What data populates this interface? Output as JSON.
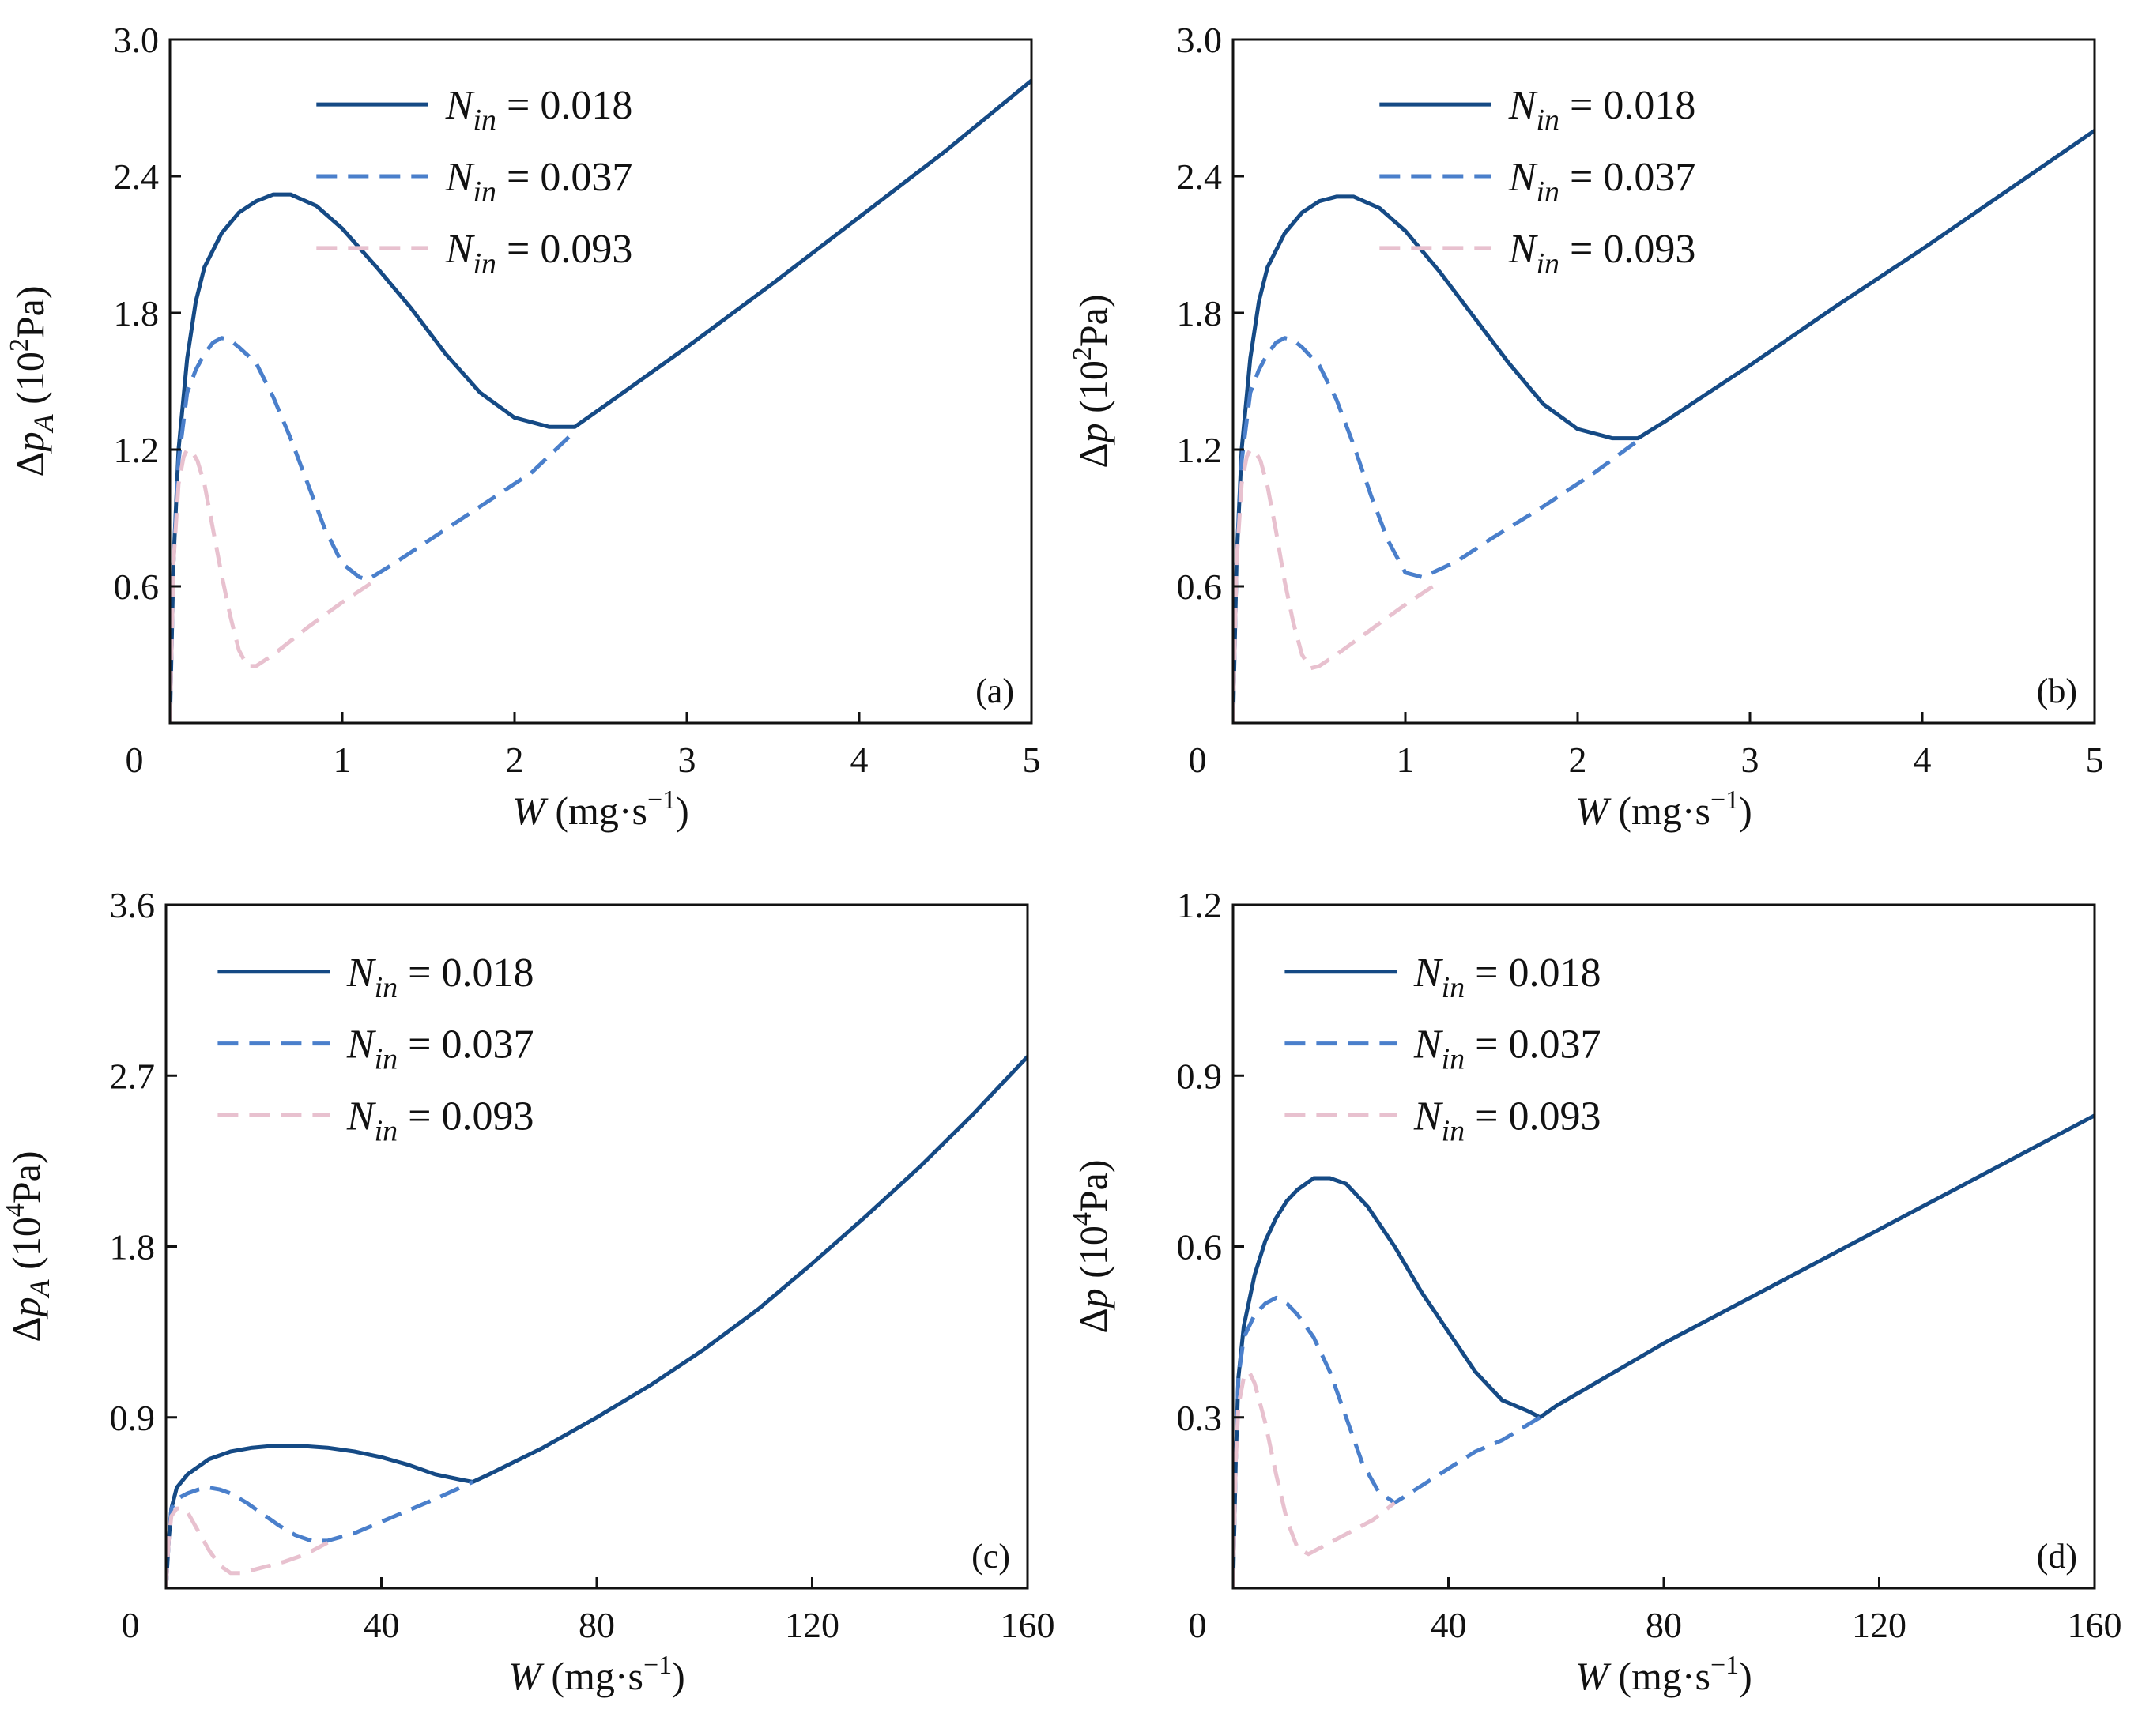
{
  "figure": {
    "legend_template": {
      "symbol": "N",
      "subscript": "in",
      "equals": "="
    },
    "units": {
      "w_unit_prefix": "(mg·s",
      "w_unit_exponent": "−1",
      "w_unit_suffix": ")",
      "pa2_prefix": "(10",
      "pa2_exponent": "2",
      "pa2_suffix": "Pa)",
      "pa4_prefix": "(10",
      "pa4_exponent": "4",
      "pa4_suffix": "Pa)"
    }
  },
  "chart_data": [
    {
      "type": "line",
      "panel_label": "(a)",
      "xlabel_symbol": "W",
      "ylabel": {
        "delta": "Δ",
        "symbol": "p",
        "subscript": "A",
        "unit": "pa2"
      },
      "xlim": [
        0,
        5
      ],
      "ylim": [
        0,
        3.0
      ],
      "xticks": [
        0,
        1,
        2,
        3,
        4,
        5
      ],
      "xtick_labels": [
        "0",
        "1",
        "2",
        "3",
        "4",
        "5"
      ],
      "yticks": [
        0.6,
        1.2,
        1.8,
        2.4,
        3.0
      ],
      "ytick_labels": [
        "0.6",
        "1.2",
        "1.8",
        "2.4",
        "3.0"
      ],
      "legend_position": "top-center",
      "series": [
        {
          "name": "0.018",
          "style": "solid",
          "color": "#154a85",
          "x": [
            0,
            0.02,
            0.05,
            0.1,
            0.15,
            0.2,
            0.3,
            0.4,
            0.5,
            0.6,
            0.7,
            0.85,
            1.0,
            1.2,
            1.4,
            1.6,
            1.8,
            2.0,
            2.2,
            2.35,
            2.5,
            3.0,
            3.5,
            4.0,
            4.5,
            5.0
          ],
          "y": [
            0,
            0.7,
            1.2,
            1.6,
            1.85,
            2.0,
            2.15,
            2.24,
            2.29,
            2.32,
            2.32,
            2.27,
            2.17,
            2.0,
            1.82,
            1.62,
            1.45,
            1.34,
            1.3,
            1.3,
            1.38,
            1.65,
            1.93,
            2.22,
            2.51,
            2.82
          ]
        },
        {
          "name": "0.037",
          "style": "dashed",
          "color": "#4a7fcb",
          "x": [
            0,
            0.02,
            0.05,
            0.1,
            0.15,
            0.2,
            0.25,
            0.3,
            0.35,
            0.4,
            0.5,
            0.6,
            0.7,
            0.8,
            0.9,
            1.0,
            1.1,
            1.15,
            1.3,
            1.5,
            1.8,
            2.1,
            2.35
          ],
          "y": [
            0,
            0.7,
            1.15,
            1.45,
            1.55,
            1.62,
            1.67,
            1.69,
            1.68,
            1.65,
            1.58,
            1.43,
            1.25,
            1.05,
            0.85,
            0.7,
            0.64,
            0.63,
            0.7,
            0.8,
            0.95,
            1.1,
            1.28
          ]
        },
        {
          "name": "0.093",
          "style": "dashed",
          "color": "#e8c1cf",
          "x": [
            0,
            0.02,
            0.05,
            0.08,
            0.1,
            0.13,
            0.16,
            0.2,
            0.25,
            0.3,
            0.35,
            0.4,
            0.45,
            0.5,
            0.6,
            0.8,
            1.0,
            1.2
          ],
          "y": [
            0,
            0.7,
            1.05,
            1.17,
            1.2,
            1.19,
            1.15,
            1.05,
            0.85,
            0.65,
            0.47,
            0.32,
            0.25,
            0.25,
            0.3,
            0.42,
            0.53,
            0.63
          ]
        }
      ]
    },
    {
      "type": "line",
      "panel_label": "(b)",
      "xlabel_symbol": "W",
      "ylabel": {
        "delta": "Δ",
        "symbol": "p",
        "subscript": "",
        "unit": "pa2"
      },
      "xlim": [
        0,
        5
      ],
      "ylim": [
        0,
        3.0
      ],
      "xticks": [
        0,
        1,
        2,
        3,
        4,
        5
      ],
      "xtick_labels": [
        "0",
        "1",
        "2",
        "3",
        "4",
        "5"
      ],
      "yticks": [
        0.6,
        1.2,
        1.8,
        2.4,
        3.0
      ],
      "ytick_labels": [
        "0.6",
        "1.2",
        "1.8",
        "2.4",
        "3.0"
      ],
      "legend_position": "top-center",
      "series": [
        {
          "name": "0.018",
          "style": "solid",
          "color": "#154a85",
          "x": [
            0,
            0.02,
            0.05,
            0.1,
            0.15,
            0.2,
            0.3,
            0.4,
            0.5,
            0.6,
            0.7,
            0.85,
            1.0,
            1.2,
            1.4,
            1.6,
            1.8,
            2.0,
            2.2,
            2.35,
            2.5,
            3.0,
            3.5,
            4.0,
            4.5,
            5.0
          ],
          "y": [
            0,
            0.7,
            1.2,
            1.6,
            1.85,
            2.0,
            2.15,
            2.24,
            2.29,
            2.31,
            2.31,
            2.26,
            2.16,
            1.98,
            1.78,
            1.58,
            1.4,
            1.29,
            1.25,
            1.25,
            1.32,
            1.57,
            1.83,
            2.08,
            2.34,
            2.6
          ]
        },
        {
          "name": "0.037",
          "style": "dashed",
          "color": "#4a7fcb",
          "x": [
            0,
            0.02,
            0.05,
            0.1,
            0.15,
            0.2,
            0.25,
            0.3,
            0.35,
            0.4,
            0.5,
            0.6,
            0.7,
            0.8,
            0.9,
            1.0,
            1.1,
            1.3,
            1.5,
            1.8,
            2.1,
            2.35
          ],
          "y": [
            0,
            0.7,
            1.15,
            1.45,
            1.55,
            1.62,
            1.67,
            1.69,
            1.68,
            1.65,
            1.57,
            1.42,
            1.22,
            1.0,
            0.8,
            0.66,
            0.64,
            0.71,
            0.81,
            0.95,
            1.1,
            1.24
          ]
        },
        {
          "name": "0.093",
          "style": "dashed",
          "color": "#e8c1cf",
          "x": [
            0,
            0.02,
            0.05,
            0.08,
            0.1,
            0.13,
            0.16,
            0.2,
            0.25,
            0.3,
            0.35,
            0.4,
            0.45,
            0.5,
            0.6,
            0.8,
            1.0,
            1.2
          ],
          "y": [
            0,
            0.7,
            1.05,
            1.17,
            1.2,
            1.19,
            1.15,
            1.04,
            0.84,
            0.62,
            0.44,
            0.3,
            0.24,
            0.25,
            0.3,
            0.41,
            0.52,
            0.62
          ]
        }
      ]
    },
    {
      "type": "line",
      "panel_label": "(c)",
      "xlabel_symbol": "W",
      "ylabel": {
        "delta": "Δ",
        "symbol": "p",
        "subscript": "A",
        "unit": "pa4"
      },
      "xlim": [
        0,
        160
      ],
      "ylim": [
        0,
        3.6
      ],
      "xticks": [
        0,
        40,
        80,
        120,
        160
      ],
      "xtick_labels": [
        "0",
        "40",
        "80",
        "120",
        "160"
      ],
      "yticks": [
        0.9,
        1.8,
        2.7,
        3.6
      ],
      "ytick_labels": [
        "0.9",
        "1.8",
        "2.7",
        "3.6"
      ],
      "legend_position": "top-left",
      "series": [
        {
          "name": "0.018",
          "style": "solid",
          "color": "#154a85",
          "x": [
            0,
            0.5,
            1,
            2,
            4,
            6,
            8,
            12,
            16,
            20,
            25,
            30,
            35,
            40,
            45,
            50,
            55,
            57,
            60,
            70,
            80,
            90,
            100,
            110,
            120,
            130,
            140,
            150,
            160
          ],
          "y": [
            0,
            0.25,
            0.42,
            0.53,
            0.6,
            0.64,
            0.68,
            0.72,
            0.74,
            0.75,
            0.75,
            0.74,
            0.72,
            0.69,
            0.65,
            0.6,
            0.57,
            0.56,
            0.6,
            0.74,
            0.9,
            1.07,
            1.26,
            1.47,
            1.71,
            1.96,
            2.22,
            2.5,
            2.8
          ]
        },
        {
          "name": "0.037",
          "style": "dashed",
          "color": "#4a7fcb",
          "x": [
            0,
            0.5,
            1,
            2,
            4,
            6,
            8,
            10,
            12,
            15,
            18,
            21,
            24,
            27,
            30,
            35,
            40,
            45,
            50,
            57
          ],
          "y": [
            0,
            0.25,
            0.42,
            0.47,
            0.5,
            0.52,
            0.53,
            0.52,
            0.5,
            0.45,
            0.39,
            0.33,
            0.28,
            0.25,
            0.25,
            0.29,
            0.35,
            0.41,
            0.47,
            0.56
          ]
        },
        {
          "name": "0.093",
          "style": "dashed",
          "color": "#e8c1cf",
          "x": [
            0,
            0.5,
            1,
            2,
            3,
            4,
            6,
            8,
            10,
            12,
            14,
            18,
            22,
            26,
            30
          ],
          "y": [
            0,
            0.25,
            0.38,
            0.42,
            0.42,
            0.4,
            0.3,
            0.2,
            0.12,
            0.08,
            0.08,
            0.11,
            0.14,
            0.18,
            0.24
          ]
        }
      ]
    },
    {
      "type": "line",
      "panel_label": "(d)",
      "xlabel_symbol": "W",
      "ylabel": {
        "delta": "Δ",
        "symbol": "p",
        "subscript": "",
        "unit": "pa4"
      },
      "xlim": [
        0,
        160
      ],
      "ylim": [
        0,
        1.2
      ],
      "xticks": [
        0,
        40,
        80,
        120,
        160
      ],
      "xtick_labels": [
        "0",
        "40",
        "80",
        "120",
        "160"
      ],
      "yticks": [
        0.3,
        0.6,
        0.9,
        1.2
      ],
      "ytick_labels": [
        "0.3",
        "0.6",
        "0.9",
        "1.2"
      ],
      "legend_position": "top-left",
      "series": [
        {
          "name": "0.018",
          "style": "solid",
          "color": "#154a85",
          "x": [
            0,
            0.5,
            1,
            2,
            4,
            6,
            8,
            10,
            12,
            15,
            18,
            21,
            25,
            30,
            35,
            40,
            45,
            50,
            55,
            57,
            60,
            80,
            100,
            120,
            140,
            160
          ],
          "y": [
            0,
            0.22,
            0.37,
            0.46,
            0.55,
            0.61,
            0.65,
            0.68,
            0.7,
            0.72,
            0.72,
            0.71,
            0.67,
            0.6,
            0.52,
            0.45,
            0.38,
            0.33,
            0.31,
            0.3,
            0.32,
            0.43,
            0.53,
            0.63,
            0.73,
            0.83
          ]
        },
        {
          "name": "0.037",
          "style": "dashed",
          "color": "#4a7fcb",
          "x": [
            0,
            0.5,
            1,
            2,
            4,
            6,
            8,
            10,
            12,
            15,
            18,
            21,
            24,
            27,
            30,
            35,
            40,
            45,
            50,
            57
          ],
          "y": [
            0,
            0.22,
            0.37,
            0.44,
            0.48,
            0.5,
            0.51,
            0.5,
            0.48,
            0.44,
            0.38,
            0.3,
            0.22,
            0.17,
            0.15,
            0.18,
            0.21,
            0.24,
            0.26,
            0.3
          ]
        },
        {
          "name": "0.093",
          "style": "dashed",
          "color": "#e8c1cf",
          "x": [
            0,
            0.5,
            1,
            2,
            3,
            4,
            6,
            8,
            10,
            12,
            14,
            18,
            22,
            26,
            30
          ],
          "y": [
            0,
            0.22,
            0.32,
            0.37,
            0.38,
            0.36,
            0.29,
            0.2,
            0.12,
            0.07,
            0.06,
            0.08,
            0.1,
            0.12,
            0.15
          ]
        }
      ]
    }
  ]
}
